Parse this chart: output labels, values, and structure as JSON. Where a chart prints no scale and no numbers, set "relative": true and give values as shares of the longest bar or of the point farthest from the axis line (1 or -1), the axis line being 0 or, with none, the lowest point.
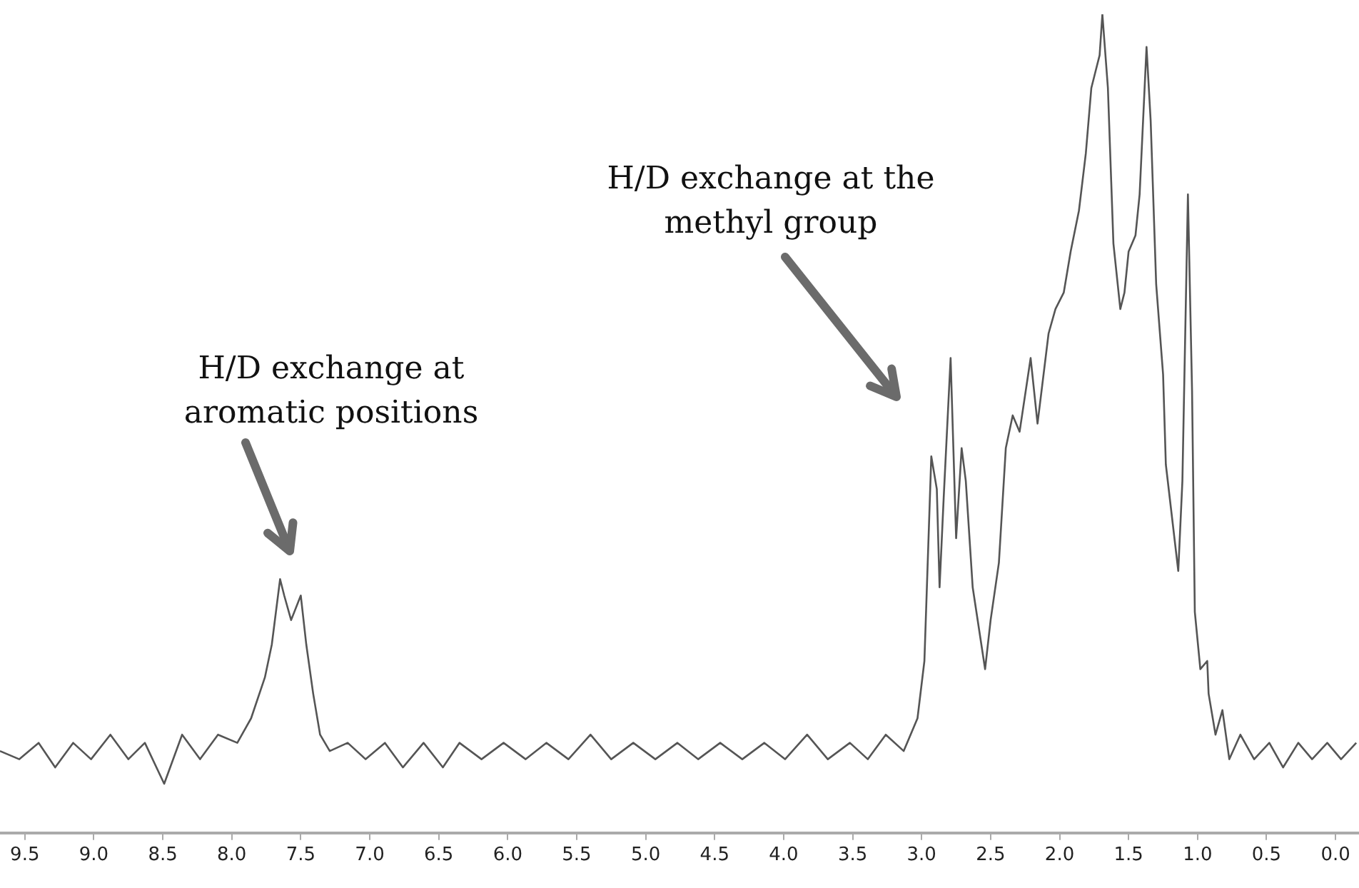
{
  "chart_data": {
    "type": "line",
    "relative": true,
    "color": "#555555",
    "marker": "none",
    "line_style": "solid",
    "grid": false,
    "legend": false,
    "tick_labels": "x",
    "xlim": [
      9.68,
      -0.17
    ],
    "xticks": [
      {
        "value": 9.5,
        "label": "9.5"
      },
      {
        "value": 9,
        "label": "9.0"
      },
      {
        "value": 8.5,
        "label": "8.5"
      },
      {
        "value": 8,
        "label": "8.0"
      },
      {
        "value": 7.5,
        "label": "7.5"
      },
      {
        "value": 7,
        "label": "7.0"
      },
      {
        "value": 6.5,
        "label": "6.5"
      },
      {
        "value": 6,
        "label": "6.0"
      },
      {
        "value": 5.5,
        "label": "5.5"
      },
      {
        "value": 5,
        "label": "5.0"
      },
      {
        "value": 4.5,
        "label": "4.5"
      },
      {
        "value": 4,
        "label": "4.0"
      },
      {
        "value": 3.5,
        "label": "3.5"
      },
      {
        "value": 3,
        "label": "3.0"
      },
      {
        "value": 2.5,
        "label": "2.5"
      },
      {
        "value": 2,
        "label": "2.0"
      },
      {
        "value": 1.5,
        "label": "1.5"
      },
      {
        "value": 1,
        "label": "1.0"
      },
      {
        "value": 0.5,
        "label": "0.5"
      },
      {
        "value": 0,
        "label": "0.0"
      }
    ],
    "annotations": [
      "H/D exchange at\naromatic positions",
      "H/D exchange at the\nmethyl group"
    ],
    "x": [
      9.68,
      9.54,
      9.4,
      9.28,
      9.15,
      9.02,
      8.88,
      8.75,
      8.63,
      8.49,
      8.36,
      8.23,
      8.1,
      7.96,
      7.86,
      7.76,
      7.71,
      7.65,
      7.62,
      7.57,
      7.5,
      7.46,
      7.41,
      7.36,
      7.29,
      7.16,
      7.03,
      6.89,
      6.76,
      6.61,
      6.47,
      6.35,
      6.19,
      6.03,
      5.87,
      5.72,
      5.56,
      5.4,
      5.25,
      5.09,
      4.93,
      4.77,
      4.62,
      4.46,
      4.3,
      4.14,
      3.99,
      3.83,
      3.68,
      3.52,
      3.39,
      3.26,
      3.13,
      3.03,
      2.98,
      2.93,
      2.89,
      2.87,
      2.84,
      2.79,
      2.75,
      2.71,
      2.68,
      2.63,
      2.54,
      2.5,
      2.44,
      2.39,
      2.34,
      2.29,
      2.21,
      2.16,
      2.08,
      2.03,
      1.97,
      1.92,
      1.86,
      1.81,
      1.77,
      1.74,
      1.71,
      1.69,
      1.65,
      1.61,
      1.56,
      1.53,
      1.5,
      1.45,
      1.42,
      1.37,
      1.34,
      1.3,
      1.25,
      1.23,
      1.14,
      1.11,
      1.07,
      1.04,
      1.02,
      0.98,
      0.93,
      0.92,
      0.87,
      0.82,
      0.77,
      0.69,
      0.59,
      0.48,
      0.38,
      0.27,
      0.17,
      0.06,
      -0.04,
      -0.15
    ],
    "values": [
      0.1,
      0.09,
      0.11,
      0.08,
      0.11,
      0.09,
      0.12,
      0.09,
      0.11,
      0.06,
      0.12,
      0.09,
      0.12,
      0.11,
      0.14,
      0.19,
      0.23,
      0.31,
      0.29,
      0.26,
      0.29,
      0.23,
      0.17,
      0.12,
      0.1,
      0.11,
      0.09,
      0.11,
      0.08,
      0.11,
      0.08,
      0.11,
      0.09,
      0.11,
      0.09,
      0.11,
      0.09,
      0.12,
      0.09,
      0.11,
      0.09,
      0.11,
      0.09,
      0.11,
      0.09,
      0.11,
      0.09,
      0.12,
      0.09,
      0.11,
      0.09,
      0.12,
      0.1,
      0.14,
      0.21,
      0.46,
      0.42,
      0.3,
      0.41,
      0.58,
      0.36,
      0.47,
      0.43,
      0.3,
      0.2,
      0.26,
      0.33,
      0.47,
      0.51,
      0.49,
      0.58,
      0.5,
      0.61,
      0.64,
      0.66,
      0.71,
      0.76,
      0.83,
      0.91,
      0.93,
      0.95,
      1,
      0.91,
      0.72,
      0.64,
      0.66,
      0.71,
      0.73,
      0.78,
      0.96,
      0.87,
      0.67,
      0.56,
      0.45,
      0.32,
      0.43,
      0.78,
      0.54,
      0.27,
      0.2,
      0.21,
      0.17,
      0.12,
      0.15,
      0.09,
      0.12,
      0.09,
      0.11,
      0.08,
      0.11,
      0.09,
      0.11,
      0.09,
      0.11
    ]
  }
}
